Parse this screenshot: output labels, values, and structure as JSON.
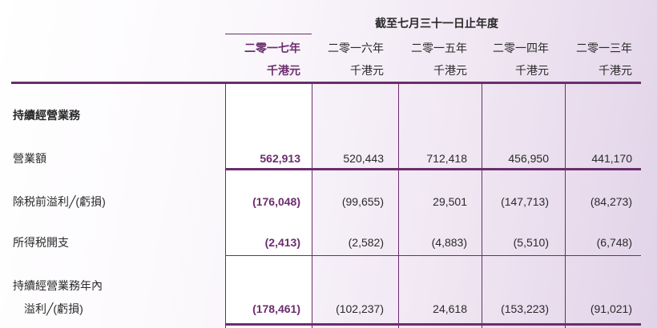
{
  "header": {
    "period": "截至七月三十一日止年度",
    "years": [
      "二零一七年",
      "二零一六年",
      "二零一五年",
      "二零一四年",
      "二零一三年"
    ],
    "unit": "千港元"
  },
  "rows": {
    "section": "持續經營業務",
    "revenue": {
      "label": "營業額",
      "values": [
        "562,913",
        "520,443",
        "712,418",
        "456,950",
        "441,170"
      ]
    },
    "pretax": {
      "label": "除税前溢利╱(虧損)",
      "values": [
        "(176,048)",
        "(99,655)",
        "29,501",
        "(147,713)",
        "(84,273)"
      ]
    },
    "tax": {
      "label": "所得税開支",
      "values": [
        "(2,413)",
        "(2,582)",
        "(4,883)",
        "(5,510)",
        "(6,748)"
      ]
    },
    "year_profit": {
      "label1": "持續經營業務年內",
      "label2": "溢利╱(虧損)",
      "values": [
        "(178,461)",
        "(102,237)",
        "24,618",
        "(153,223)",
        "(91,021)"
      ]
    }
  },
  "colors": {
    "accent": "#6b2d6e"
  }
}
